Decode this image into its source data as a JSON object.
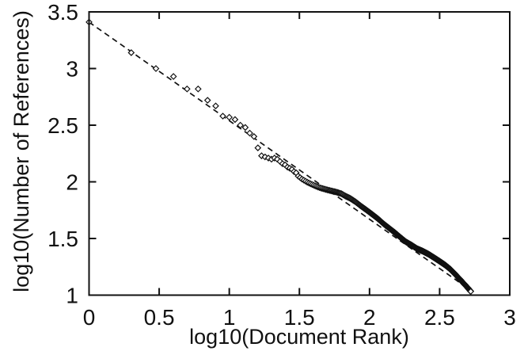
{
  "figure": {
    "background": "#ffffff",
    "ink": "#111111"
  },
  "chart_data": {
    "type": "scatter",
    "title": "",
    "xlabel": "log10(Document Rank)",
    "ylabel": "log10(Number of References)",
    "xlim": [
      0,
      3
    ],
    "ylim": [
      1,
      3.5
    ],
    "grid": false,
    "legend": "none",
    "marker": "open-diamond",
    "x_tick_values": [
      0,
      0.5,
      1,
      1.5,
      2,
      2.5,
      3
    ],
    "x_tick_labels": [
      "0",
      "0.5",
      "1",
      "1.5",
      "2",
      "2.5",
      "3"
    ],
    "y_tick_values": [
      1,
      1.5,
      2,
      2.5,
      3,
      3.5
    ],
    "y_tick_labels": [
      "1",
      "1.5",
      "2",
      "2.5",
      "3",
      "3.5"
    ],
    "series_description": "log10(number of references) vs log10(document rank); x = log10(rank) for ranks 1-527",
    "points_explicit": [
      [
        0.0,
        3.41
      ],
      [
        0.301,
        3.14
      ],
      [
        0.477,
        3.0
      ],
      [
        0.602,
        2.93
      ],
      [
        0.699,
        2.82
      ],
      [
        0.778,
        2.82
      ],
      [
        0.845,
        2.72
      ],
      [
        0.903,
        2.67
      ],
      [
        0.954,
        2.58
      ],
      [
        1.0,
        2.57
      ],
      [
        1.041,
        2.55
      ],
      [
        1.079,
        2.5
      ],
      [
        1.114,
        2.48
      ],
      [
        1.146,
        2.43
      ],
      [
        1.176,
        2.4
      ],
      [
        1.204,
        2.3
      ],
      [
        1.23,
        2.23
      ],
      [
        1.255,
        2.22
      ],
      [
        1.279,
        2.21
      ],
      [
        1.301,
        2.2
      ],
      [
        1.322,
        2.21
      ],
      [
        1.342,
        2.2
      ],
      [
        1.362,
        2.18
      ],
      [
        1.38,
        2.16
      ],
      [
        1.398,
        2.15
      ],
      [
        1.415,
        2.13
      ],
      [
        1.431,
        2.12
      ],
      [
        1.447,
        2.11
      ],
      [
        1.462,
        2.09
      ],
      [
        1.477,
        2.08
      ]
    ],
    "dense_band": {
      "x_rule": "log10(rank)",
      "rank_start": 31,
      "rank_end": 527,
      "wiggle_amplitude": 0.01,
      "wiggle_period": 0.6,
      "curve_knots": [
        [
          1.491,
          2.05
        ],
        [
          1.52,
          2.025
        ],
        [
          1.56,
          2.0
        ],
        [
          1.6,
          1.98
        ],
        [
          1.64,
          1.96
        ],
        [
          1.68,
          1.945
        ],
        [
          1.72,
          1.93
        ],
        [
          1.76,
          1.915
        ],
        [
          1.8,
          1.895
        ],
        [
          1.83,
          1.87
        ],
        [
          1.86,
          1.85
        ],
        [
          1.9,
          1.815
        ],
        [
          1.94,
          1.775
        ],
        [
          1.98,
          1.74
        ],
        [
          2.02,
          1.705
        ],
        [
          2.06,
          1.67
        ],
        [
          2.1,
          1.63
        ],
        [
          2.14,
          1.595
        ],
        [
          2.18,
          1.56
        ],
        [
          2.22,
          1.52
        ],
        [
          2.26,
          1.48
        ],
        [
          2.3,
          1.45
        ],
        [
          2.34,
          1.415
        ],
        [
          2.38,
          1.39
        ],
        [
          2.42,
          1.36
        ],
        [
          2.46,
          1.325
        ],
        [
          2.5,
          1.29
        ],
        [
          2.54,
          1.255
        ],
        [
          2.58,
          1.215
        ],
        [
          2.62,
          1.165
        ],
        [
          2.66,
          1.115
        ],
        [
          2.7,
          1.065
        ],
        [
          2.722,
          1.035
        ]
      ]
    },
    "fit_line": {
      "style": "dashed",
      "intercept": 3.41,
      "slope": -0.87,
      "x_start": 0,
      "x_end": 2.722
    }
  }
}
